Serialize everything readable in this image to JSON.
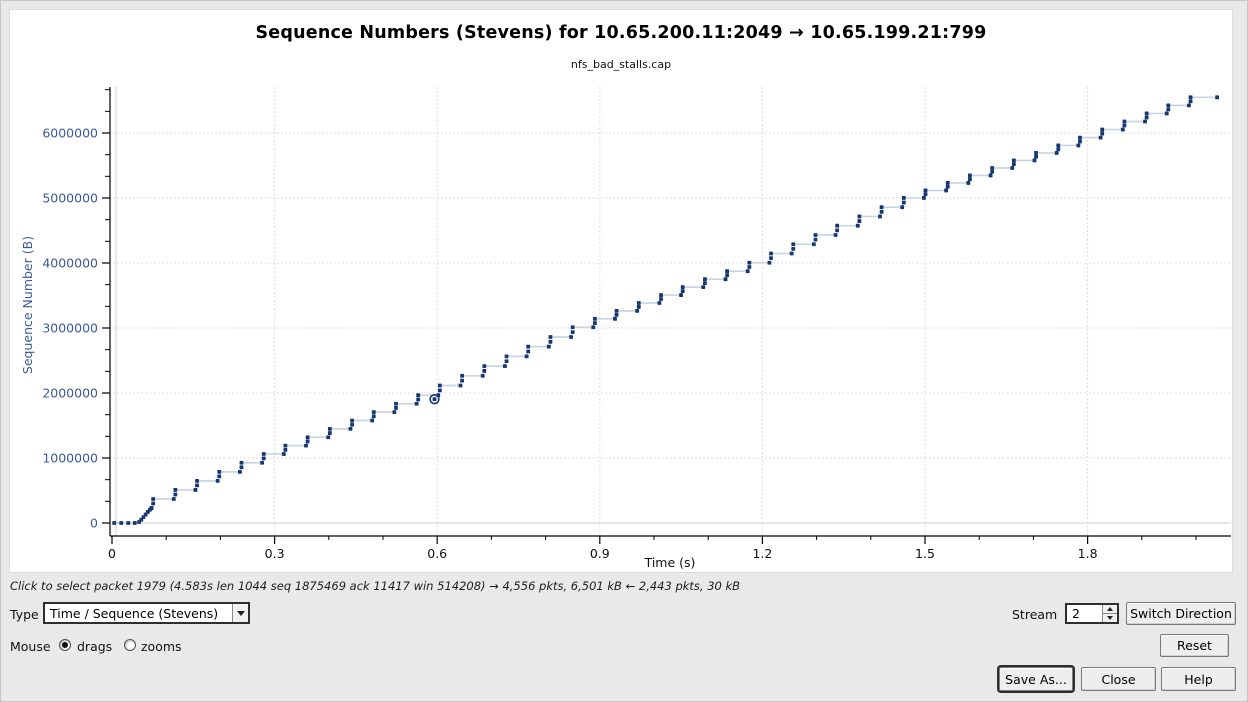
{
  "header": {
    "title": "Sequence Numbers (Stevens) for 10.65.200.11:2049 → 10.65.199.21:799",
    "subtitle": "nfs_bad_stalls.cap"
  },
  "status_bar": {
    "text": "Click to select packet 1979 (4.583s len 1044 seq 1875469 ack 11417 win 514208) → 4,556 pkts, 6,501 kB ← 2,443 pkts, 30 kB"
  },
  "controls": {
    "type_label": "Type",
    "type_value": "Time / Sequence (Stevens)",
    "mouse_label": "Mouse",
    "mouse_options": [
      {
        "label": "drags",
        "selected": true
      },
      {
        "label": "zooms",
        "selected": false
      }
    ],
    "stream_label": "Stream",
    "stream_value": "2",
    "switch_direction_label": "Switch Direction",
    "reset_label": "Reset",
    "save_as_label": "Save As...",
    "close_label": "Close",
    "help_label": "Help"
  },
  "chart_data": {
    "type": "scatter",
    "title": "Sequence Numbers (Stevens) for 10.65.200.11:2049 → 10.65.199.21:799",
    "subtitle": "nfs_bad_stalls.cap",
    "xlabel": "Time (s)",
    "ylabel": "Sequence Number (B)",
    "xlim": [
      0,
      2.07
    ],
    "ylim": [
      0,
      6710000
    ],
    "grid": "dotted, at major ticks",
    "x_major_ticks": [
      0,
      0.3,
      0.6,
      0.9,
      1.2,
      1.5,
      1.8
    ],
    "x_major_labels": [
      "0",
      "0.3",
      "0.6",
      "0.9",
      "1.2",
      "1.5",
      "1.8"
    ],
    "x_minor_step": 0.1,
    "y_major_ticks": [
      0,
      1000000,
      2000000,
      3000000,
      4000000,
      5000000,
      6000000
    ],
    "y_major_labels": [
      "0",
      "1000000",
      "2000000",
      "3000000",
      "4000000",
      "5000000",
      "6000000"
    ],
    "y_minor_divisions": 3,
    "lead_points": [
      [
        0.004,
        0
      ],
      [
        0.017,
        0
      ],
      [
        0.03,
        0
      ],
      [
        0.042,
        0
      ],
      [
        0.05,
        15000
      ],
      [
        0.054,
        50000
      ],
      [
        0.058,
        90000
      ],
      [
        0.062,
        130000
      ],
      [
        0.066,
        170000
      ],
      [
        0.07,
        205000
      ],
      [
        0.073,
        228000
      ]
    ],
    "clusters": [
      [
        0.075,
        230000,
        369000
      ],
      [
        0.116,
        369000,
        509000
      ],
      [
        0.156,
        509000,
        648000
      ],
      [
        0.197,
        648000,
        787000
      ],
      [
        0.238,
        787000,
        927000
      ],
      [
        0.279,
        927000,
        1061000
      ],
      [
        0.319,
        1061000,
        1190000
      ],
      [
        0.36,
        1190000,
        1319000
      ],
      [
        0.401,
        1319000,
        1448000
      ],
      [
        0.442,
        1448000,
        1577000
      ],
      [
        0.482,
        1577000,
        1706000
      ],
      [
        0.523,
        1706000,
        1835000
      ],
      [
        0.564,
        1835000,
        1966000
      ],
      [
        0.604,
        1966000,
        2115000
      ],
      [
        0.645,
        2115000,
        2265000
      ],
      [
        0.686,
        2265000,
        2414000
      ],
      [
        0.727,
        2414000,
        2563000
      ],
      [
        0.767,
        2563000,
        2713000
      ],
      [
        0.808,
        2713000,
        2862000
      ],
      [
        0.849,
        2862000,
        3011000
      ],
      [
        0.89,
        3011000,
        3141000
      ],
      [
        0.93,
        3141000,
        3263000
      ],
      [
        0.971,
        3263000,
        3385000
      ],
      [
        1.012,
        3385000,
        3507000
      ],
      [
        1.052,
        3507000,
        3629000
      ],
      [
        1.093,
        3629000,
        3751000
      ],
      [
        1.134,
        3751000,
        3874000
      ],
      [
        1.175,
        3874000,
        4004000
      ],
      [
        1.215,
        4004000,
        4146000
      ],
      [
        1.256,
        4146000,
        4289000
      ],
      [
        1.297,
        4289000,
        4431000
      ],
      [
        1.337,
        4431000,
        4574000
      ],
      [
        1.378,
        4574000,
        4716000
      ],
      [
        1.419,
        4716000,
        4859000
      ],
      [
        1.46,
        4859000,
        5001000
      ],
      [
        1.5,
        5001000,
        5116000
      ],
      [
        1.541,
        5116000,
        5232000
      ],
      [
        1.582,
        5232000,
        5347000
      ],
      [
        1.623,
        5347000,
        5462000
      ],
      [
        1.663,
        5462000,
        5578000
      ],
      [
        1.704,
        5578000,
        5693000
      ],
      [
        1.745,
        5693000,
        5809000
      ],
      [
        1.785,
        5809000,
        5929000
      ],
      [
        1.826,
        5929000,
        6053000
      ],
      [
        1.867,
        6053000,
        6177000
      ],
      [
        1.908,
        6177000,
        6301000
      ],
      [
        1.948,
        6301000,
        6425000
      ],
      [
        1.989,
        6425000,
        6549000
      ]
    ],
    "final_point": [
      2.039,
      6549000
    ],
    "selected_point": [
      0.595,
      1905000
    ],
    "colors": {
      "dot": "#16376f",
      "connector": "#c9d4e4",
      "axis": "#000000",
      "tick_label_x": "#111111",
      "tick_label_y": "#3b5c95",
      "axis_title_y": "#3b5c95",
      "grid_dotted": "#d3d3d3",
      "zero_line": "#dedede",
      "plot_background": "#ffffff"
    }
  }
}
